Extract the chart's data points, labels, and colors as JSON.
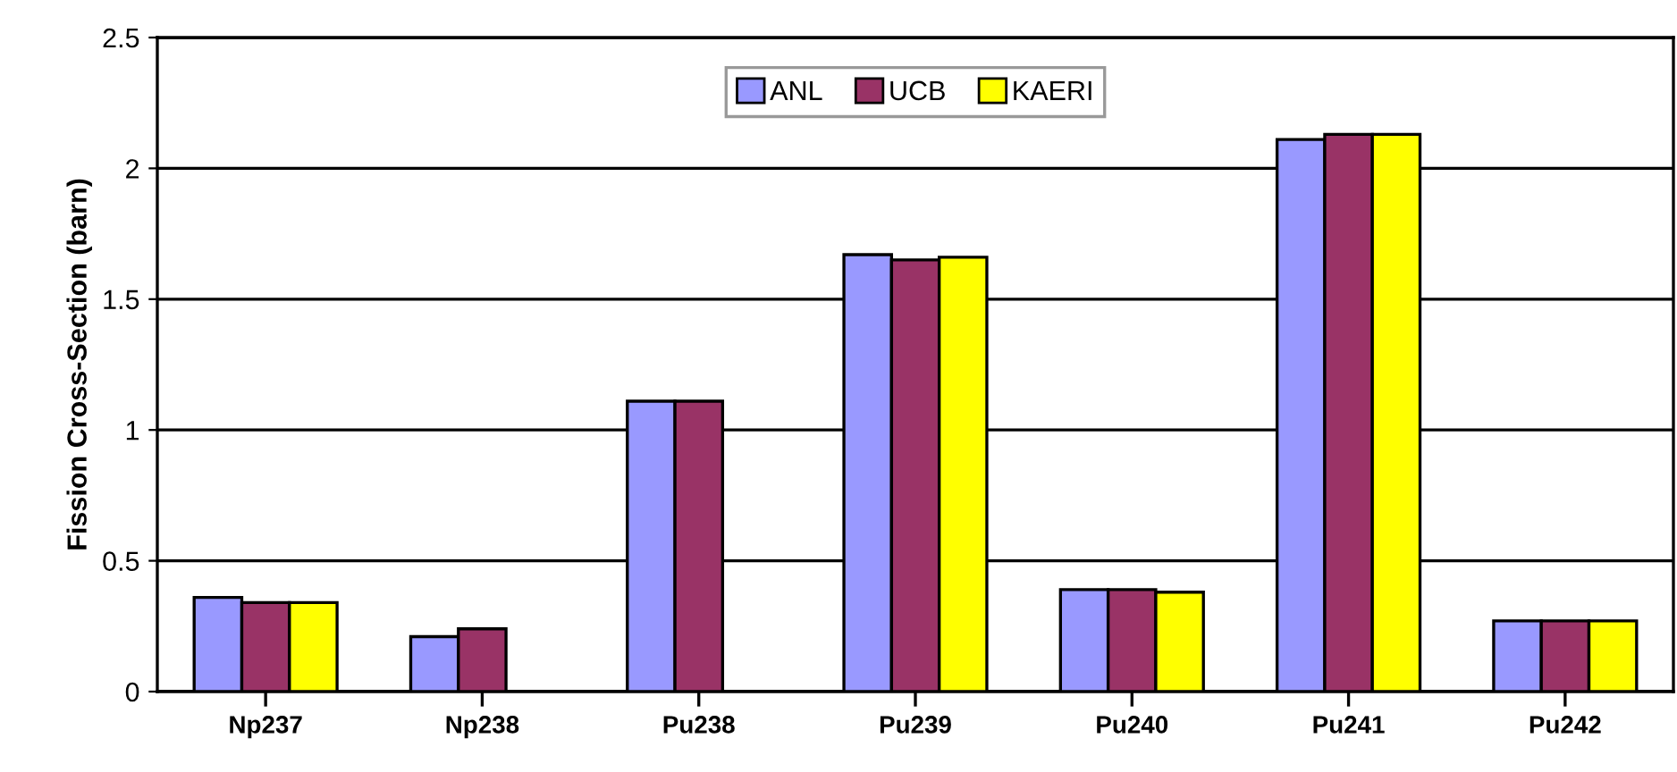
{
  "chart_data": {
    "type": "bar",
    "ylabel": "Fission Cross-Section (barn)",
    "categories": [
      "Np237",
      "Np238",
      "Pu238",
      "Pu239",
      "Pu240",
      "Pu241",
      "Pu242"
    ],
    "series": [
      {
        "name": "ANL",
        "color": "#9999ff",
        "values": [
          0.36,
          0.21,
          1.11,
          1.67,
          0.39,
          2.11,
          0.27
        ]
      },
      {
        "name": "UCB",
        "color": "#993366",
        "values": [
          0.34,
          0.24,
          1.11,
          1.65,
          0.39,
          2.13,
          0.27
        ]
      },
      {
        "name": "KAERI",
        "color": "#ffff00",
        "values": [
          0.34,
          null,
          null,
          1.66,
          0.38,
          2.13,
          0.27
        ]
      }
    ],
    "ylim": [
      0,
      2.5
    ],
    "yticks": [
      0,
      0.5,
      1,
      1.5,
      2,
      2.5
    ],
    "grid": "y",
    "legend": "top"
  }
}
